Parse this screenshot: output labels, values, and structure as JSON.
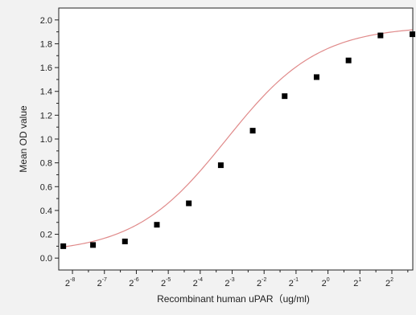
{
  "chart_data": {
    "type": "scatter",
    "xlabel": "Recombinant human  uPAR（ug/ml)",
    "ylabel": "Mean OD value",
    "x_scale": "log2",
    "x_tick_labels": [
      {
        "base": "2",
        "exp": "-8",
        "value": 0.00390625
      },
      {
        "base": "2",
        "exp": "-7",
        "value": 0.0078125
      },
      {
        "base": "2",
        "exp": "-6",
        "value": 0.015625
      },
      {
        "base": "2",
        "exp": "-5",
        "value": 0.03125
      },
      {
        "base": "2",
        "exp": "-4",
        "value": 0.0625
      },
      {
        "base": "2",
        "exp": "-3",
        "value": 0.125
      },
      {
        "base": "2",
        "exp": "-2",
        "value": 0.25
      },
      {
        "base": "2",
        "exp": "-1",
        "value": 0.5
      },
      {
        "base": "2",
        "exp": "0",
        "value": 1
      },
      {
        "base": "2",
        "exp": "1",
        "value": 2
      },
      {
        "base": "2",
        "exp": "2",
        "value": 4
      }
    ],
    "xlim": [
      0.0029,
      6.3
    ],
    "ylim": [
      -0.1,
      2.1
    ],
    "y_ticks": [
      "0.0",
      "0.2",
      "0.4",
      "0.6",
      "0.8",
      "1.0",
      "1.2",
      "1.4",
      "1.6",
      "1.8",
      "2.0"
    ],
    "series": [
      {
        "points": [
          {
            "x": 0.0032,
            "y": 0.1
          },
          {
            "x": 0.0061,
            "y": 0.11
          },
          {
            "x": 0.0122,
            "y": 0.14
          },
          {
            "x": 0.0244,
            "y": 0.28
          },
          {
            "x": 0.0488,
            "y": 0.46
          },
          {
            "x": 0.0977,
            "y": 0.78
          },
          {
            "x": 0.1953,
            "y": 1.07
          },
          {
            "x": 0.3906,
            "y": 1.36
          },
          {
            "x": 0.7813,
            "y": 1.52
          },
          {
            "x": 1.5625,
            "y": 1.66
          },
          {
            "x": 3.125,
            "y": 1.87
          },
          {
            "x": 6.25,
            "y": 1.88
          }
        ],
        "marker": "square",
        "color": "#000000"
      }
    ],
    "fit_curve": {
      "type": "4PL",
      "bottom": 0.04,
      "top": 1.95,
      "ec50": 0.11,
      "hill": 1.0,
      "color": "#e08a8a"
    },
    "grid": false,
    "legend": "none"
  }
}
